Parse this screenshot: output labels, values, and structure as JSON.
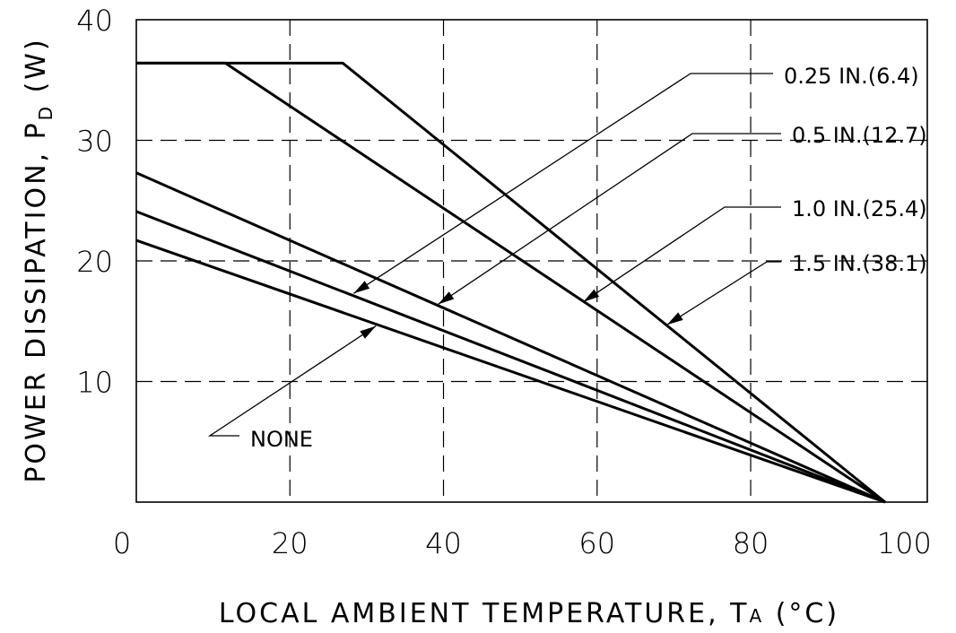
{
  "chart_data": {
    "type": "line",
    "title": "",
    "xlabel": "LOCAL AMBIENT TEMPERATURE, T",
    "xlabel_sub": "A",
    "xlabel_unit": "(°C)",
    "ylabel": "POWER DISSIPATION, P",
    "ylabel_sub": "D",
    "ylabel_unit": "(W)",
    "xlim": [
      0,
      103
    ],
    "ylim": [
      0,
      40
    ],
    "xticks": [
      0,
      20,
      40,
      60,
      80,
      100
    ],
    "yticks": [
      10,
      20,
      30,
      40
    ],
    "x_tick_labels": [
      "0",
      "20",
      "40",
      "60",
      "80",
      "100"
    ],
    "y_tick_labels": [
      "10",
      "20",
      "30",
      "40"
    ],
    "grid": true,
    "grid_x": [
      20,
      40,
      60,
      80
    ],
    "grid_y": [
      10,
      20,
      30
    ],
    "series": [
      {
        "name": "0.25 IN.(6.4)",
        "x": [
          0,
          26.9,
          97.5
        ],
        "y": [
          36.4,
          36.4,
          0
        ]
      },
      {
        "name": "0.5 IN.(12.7)",
        "x": [
          0,
          11.6,
          97.5
        ],
        "y": [
          36.4,
          36.4,
          0
        ]
      },
      {
        "name": "1.0 IN.(25.4)",
        "x": [
          0,
          97.5
        ],
        "y": [
          27.3,
          0
        ]
      },
      {
        "name": "1.5 IN.(38.1)",
        "x": [
          0,
          97.5
        ],
        "y": [
          24.1,
          0
        ]
      },
      {
        "name": "NONE",
        "x": [
          0,
          97.5
        ],
        "y": [
          21.7,
          0
        ]
      }
    ],
    "annotations": [
      {
        "text": "0.25 IN.(6.4)",
        "points_to": "0.5 IN.(12.7)",
        "arrow_x": 28.3,
        "arrow_y": 17.3
      },
      {
        "text": "0.5 IN.(12.7)",
        "points_to": "1.0 IN.(25.4)",
        "arrow_x": 39.3,
        "arrow_y": 16.4
      },
      {
        "text": "1.0 IN.(25.4)",
        "points_to": "0.5 IN.(12.7)",
        "arrow_x": 58.2,
        "arrow_y": 16.6
      },
      {
        "text": "1.5 IN.(38.1)",
        "points_to": "0.25 IN.(6.4)",
        "arrow_x": 69.1,
        "arrow_y": 14.7
      },
      {
        "text": "NONE",
        "points_to": "1.5 IN.(38.1)",
        "arrow_x": 31.2,
        "arrow_y": 14.6
      }
    ]
  }
}
